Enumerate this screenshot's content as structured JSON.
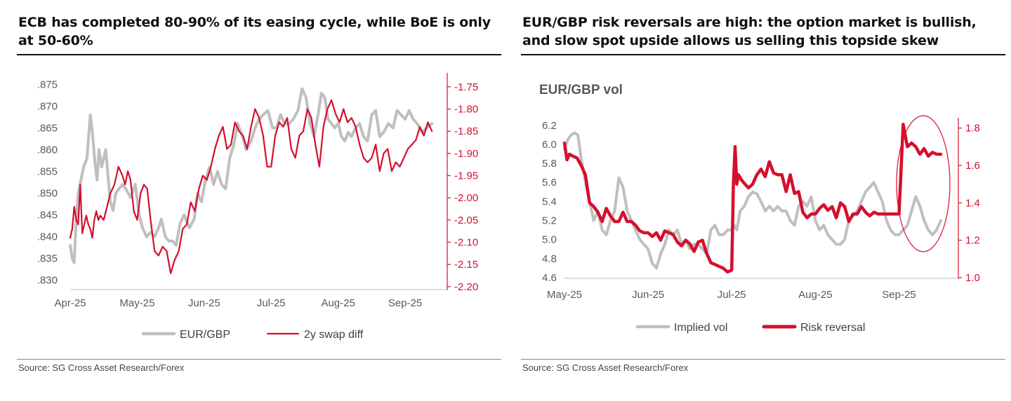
{
  "colors": {
    "grey": "#bfbfbf",
    "red": "#d50f2e",
    "axis_text": "#595959",
    "headline": "#111111"
  },
  "left": {
    "headline": "ECB has completed 80-90% of its easing cycle, while BoE is only at 50-60%",
    "source": "Source: SG Cross Asset Research/Forex"
  },
  "right": {
    "headline": "EUR/GBP risk reversals are high: the option market is bullish, and slow spot upside allows us selling this topside skew",
    "source": "Source: SG Cross Asset Research/Forex"
  },
  "chart_data": [
    {
      "type": "line",
      "title": "",
      "xlabel": "",
      "x_tick_labels": [
        "Apr-25",
        "May-25",
        "Jun-25",
        "Jul-25",
        "Aug-25",
        "Sep-25"
      ],
      "x_range": [
        0,
        5.45
      ],
      "y_left": {
        "range": [
          0.828,
          0.877
        ],
        "ticks": [
          ".830",
          ".835",
          ".840",
          ".845",
          ".850",
          ".855",
          ".860",
          ".865",
          ".870",
          ".875"
        ]
      },
      "y_right": {
        "range": [
          -2.205,
          -1.725
        ],
        "ticks": [
          "-1.75",
          "-1.80",
          "-1.85",
          "-1.90",
          "-1.95",
          "-2.00",
          "-2.05",
          "-2.10",
          "-2.15",
          "-2.20"
        ]
      },
      "legend": [
        "EUR/GBP",
        "2y swap diff"
      ],
      "legend_position": "bottom",
      "series": [
        {
          "name": "EUR/GBP",
          "axis": "left",
          "color": "#bfbfbf",
          "x": [
            0,
            0.03,
            0.06,
            0.09,
            0.12,
            0.16,
            0.2,
            0.25,
            0.3,
            0.33,
            0.37,
            0.4,
            0.43,
            0.47,
            0.5,
            0.53,
            0.57,
            0.6,
            0.64,
            0.68,
            0.73,
            0.78,
            0.83,
            0.9,
            0.97,
            1.03,
            1.08,
            1.14,
            1.2,
            1.26,
            1.32,
            1.36,
            1.42,
            1.47,
            1.53,
            1.58,
            1.64,
            1.7,
            1.78,
            1.85,
            1.9,
            1.96,
            2.02,
            2.08,
            2.14,
            2.2,
            2.26,
            2.32,
            2.38,
            2.44,
            2.5,
            2.57,
            2.63,
            2.7,
            2.76,
            2.82,
            2.88,
            2.95,
            3.02,
            3.08,
            3.14,
            3.2,
            3.27,
            3.33,
            3.4,
            3.46,
            3.52,
            3.58,
            3.64,
            3.7,
            3.75,
            3.8,
            3.85,
            3.9,
            3.95,
            4.0,
            4.05,
            4.1,
            4.15,
            4.2,
            4.26,
            4.32,
            4.38,
            4.44,
            4.5,
            4.56,
            4.62,
            4.68,
            4.75,
            4.82,
            4.88,
            4.94,
            5.0,
            5.06,
            5.12,
            5.18,
            5.25,
            5.32,
            5.4
          ],
          "values": [
            0.838,
            0.835,
            0.834,
            0.844,
            0.85,
            0.853,
            0.856,
            0.858,
            0.868,
            0.864,
            0.857,
            0.853,
            0.86,
            0.856,
            0.858,
            0.86,
            0.853,
            0.848,
            0.846,
            0.85,
            0.851,
            0.852,
            0.851,
            0.849,
            0.852,
            0.845,
            0.842,
            0.84,
            0.841,
            0.84,
            0.842,
            0.844,
            0.84,
            0.839,
            0.839,
            0.838,
            0.843,
            0.845,
            0.842,
            0.844,
            0.85,
            0.848,
            0.853,
            0.856,
            0.852,
            0.855,
            0.852,
            0.851,
            0.858,
            0.861,
            0.866,
            0.863,
            0.86,
            0.862,
            0.865,
            0.867,
            0.868,
            0.869,
            0.865,
            0.865,
            0.868,
            0.866,
            0.866,
            0.867,
            0.869,
            0.874,
            0.872,
            0.866,
            0.863,
            0.868,
            0.873,
            0.872,
            0.867,
            0.866,
            0.865,
            0.866,
            0.863,
            0.862,
            0.864,
            0.863,
            0.865,
            0.866,
            0.863,
            0.862,
            0.868,
            0.869,
            0.863,
            0.864,
            0.866,
            0.865,
            0.869,
            0.868,
            0.867,
            0.869,
            0.867,
            0.866,
            0.864,
            0.865,
            0.866
          ]
        },
        {
          "name": "2y swap diff",
          "axis": "right",
          "color": "#d50f2e",
          "x": [
            0,
            0.03,
            0.06,
            0.09,
            0.12,
            0.15,
            0.18,
            0.21,
            0.24,
            0.27,
            0.3,
            0.33,
            0.36,
            0.39,
            0.42,
            0.45,
            0.5,
            0.55,
            0.6,
            0.66,
            0.72,
            0.78,
            0.82,
            0.86,
            0.9,
            0.95,
            1.0,
            1.05,
            1.1,
            1.15,
            1.2,
            1.26,
            1.32,
            1.38,
            1.44,
            1.5,
            1.56,
            1.62,
            1.68,
            1.74,
            1.8,
            1.86,
            1.92,
            1.98,
            2.04,
            2.1,
            2.16,
            2.22,
            2.28,
            2.34,
            2.4,
            2.46,
            2.52,
            2.58,
            2.64,
            2.7,
            2.76,
            2.82,
            2.88,
            2.94,
            3.0,
            3.06,
            3.12,
            3.18,
            3.24,
            3.3,
            3.36,
            3.42,
            3.48,
            3.54,
            3.6,
            3.66,
            3.72,
            3.78,
            3.84,
            3.9,
            3.96,
            4.02,
            4.08,
            4.14,
            4.2,
            4.26,
            4.32,
            4.38,
            4.44,
            4.5,
            4.56,
            4.62,
            4.68,
            4.74,
            4.8,
            4.86,
            4.92,
            4.98,
            5.04,
            5.1,
            5.16,
            5.22,
            5.28,
            5.34,
            5.4
          ],
          "values": [
            -2.09,
            -2.07,
            -2.02,
            -2.05,
            -2.06,
            -1.97,
            -2.08,
            -2.06,
            -2.04,
            -2.06,
            -2.07,
            -2.09,
            -2.05,
            -2.03,
            -2.05,
            -2.04,
            -2.05,
            -2.02,
            -1.99,
            -1.97,
            -1.93,
            -1.95,
            -1.97,
            -1.94,
            -1.96,
            -2.03,
            -2.05,
            -1.99,
            -1.97,
            -1.98,
            -2.05,
            -2.12,
            -2.13,
            -2.11,
            -2.12,
            -2.17,
            -2.14,
            -2.12,
            -2.07,
            -2.06,
            -2.01,
            -2.03,
            -1.98,
            -1.95,
            -1.96,
            -1.93,
            -1.89,
            -1.86,
            -1.84,
            -1.89,
            -1.88,
            -1.83,
            -1.85,
            -1.86,
            -1.89,
            -1.84,
            -1.8,
            -1.82,
            -1.86,
            -1.93,
            -1.93,
            -1.86,
            -1.83,
            -1.84,
            -1.82,
            -1.89,
            -1.91,
            -1.86,
            -1.85,
            -1.8,
            -1.82,
            -1.88,
            -1.93,
            -1.84,
            -1.8,
            -1.78,
            -1.81,
            -1.83,
            -1.8,
            -1.83,
            -1.82,
            -1.84,
            -1.88,
            -1.91,
            -1.92,
            -1.91,
            -1.88,
            -1.94,
            -1.9,
            -1.89,
            -1.94,
            -1.92,
            -1.93,
            -1.91,
            -1.89,
            -1.88,
            -1.87,
            -1.84,
            -1.86,
            -1.83,
            -1.85
          ]
        }
      ]
    },
    {
      "type": "line",
      "title": "EUR/GBP vol",
      "xlabel": "",
      "x_tick_labels": [
        "May-25",
        "Jun-25",
        "Jul-25",
        "Aug-25",
        "Sep-25"
      ],
      "x_range": [
        0,
        4.55
      ],
      "y_left": {
        "range": [
          4.6,
          6.25
        ],
        "ticks": [
          "4.6",
          "4.8",
          "5.0",
          "5.2",
          "5.4",
          "5.6",
          "5.8",
          "6.0",
          "6.2"
        ]
      },
      "y_right": {
        "range": [
          1.0,
          1.84
        ],
        "ticks": [
          "1.0",
          "1.2",
          "1.4",
          "1.6",
          "1.8"
        ]
      },
      "legend": [
        "Implied vol",
        "Risk reversal"
      ],
      "legend_position": "bottom",
      "annotation": "red ellipse highlighting September risk-reversal spike",
      "series": [
        {
          "name": "Implied vol",
          "axis": "left",
          "color": "#bfbfbf",
          "x": [
            0,
            0.04,
            0.08,
            0.12,
            0.16,
            0.2,
            0.25,
            0.3,
            0.35,
            0.4,
            0.45,
            0.5,
            0.55,
            0.6,
            0.65,
            0.7,
            0.75,
            0.8,
            0.85,
            0.9,
            0.95,
            1.0,
            1.05,
            1.1,
            1.15,
            1.2,
            1.25,
            1.3,
            1.35,
            1.4,
            1.45,
            1.5,
            1.55,
            1.6,
            1.65,
            1.7,
            1.75,
            1.8,
            1.85,
            1.9,
            1.95,
            2.0,
            2.03,
            2.06,
            2.1,
            2.15,
            2.2,
            2.25,
            2.3,
            2.35,
            2.4,
            2.45,
            2.5,
            2.55,
            2.6,
            2.65,
            2.7,
            2.75,
            2.8,
            2.85,
            2.9,
            2.95,
            3.0,
            3.05,
            3.1,
            3.15,
            3.2,
            3.25,
            3.3,
            3.35,
            3.4,
            3.45,
            3.5,
            3.55,
            3.6,
            3.65,
            3.7,
            3.75,
            3.8,
            3.85,
            3.9,
            3.95,
            4.0,
            4.05,
            4.1,
            4.15,
            4.2,
            4.25,
            4.3,
            4.35,
            4.4,
            4.45,
            4.5
          ],
          "values": [
            5.95,
            6.05,
            6.1,
            6.12,
            6.1,
            5.85,
            5.6,
            5.4,
            5.2,
            5.3,
            5.1,
            5.05,
            5.2,
            5.3,
            5.65,
            5.55,
            5.3,
            5.2,
            5.1,
            5.0,
            4.95,
            4.9,
            4.75,
            4.7,
            4.85,
            4.95,
            5.1,
            5.05,
            5.1,
            4.95,
            5.0,
            4.9,
            4.95,
            4.95,
            4.9,
            4.85,
            5.1,
            5.15,
            5.05,
            5.05,
            5.1,
            5.1,
            5.15,
            5.1,
            5.3,
            5.35,
            5.45,
            5.5,
            5.48,
            5.4,
            5.3,
            5.35,
            5.3,
            5.35,
            5.3,
            5.3,
            5.2,
            5.15,
            5.35,
            5.4,
            5.35,
            5.45,
            5.2,
            5.1,
            5.15,
            5.05,
            5.0,
            4.95,
            4.95,
            5.0,
            5.2,
            5.25,
            5.3,
            5.4,
            5.5,
            5.55,
            5.6,
            5.5,
            5.4,
            5.2,
            5.1,
            5.05,
            5.05,
            5.1,
            5.15,
            5.3,
            5.45,
            5.35,
            5.2,
            5.1,
            5.05,
            5.1,
            5.2
          ]
        },
        {
          "name": "Risk reversal",
          "axis": "right",
          "color": "#d50f2e",
          "x": [
            0,
            0.03,
            0.06,
            0.1,
            0.15,
            0.2,
            0.25,
            0.3,
            0.35,
            0.4,
            0.45,
            0.5,
            0.55,
            0.6,
            0.65,
            0.7,
            0.75,
            0.8,
            0.85,
            0.9,
            0.95,
            1.0,
            1.05,
            1.1,
            1.15,
            1.2,
            1.25,
            1.3,
            1.35,
            1.4,
            1.45,
            1.5,
            1.55,
            1.6,
            1.65,
            1.7,
            1.75,
            1.8,
            1.85,
            1.9,
            1.95,
            2.0,
            2.02,
            2.04,
            2.06,
            2.08,
            2.12,
            2.16,
            2.2,
            2.25,
            2.3,
            2.35,
            2.4,
            2.45,
            2.5,
            2.55,
            2.6,
            2.65,
            2.7,
            2.75,
            2.8,
            2.85,
            2.9,
            2.95,
            3.0,
            3.05,
            3.1,
            3.15,
            3.2,
            3.25,
            3.3,
            3.35,
            3.4,
            3.45,
            3.5,
            3.55,
            3.6,
            3.65,
            3.7,
            3.75,
            3.8,
            3.85,
            3.9,
            3.95,
            4.0,
            4.05,
            4.1,
            4.15,
            4.2,
            4.25,
            4.3,
            4.35,
            4.4,
            4.45,
            4.5
          ],
          "values": [
            1.72,
            1.63,
            1.66,
            1.65,
            1.64,
            1.6,
            1.55,
            1.4,
            1.38,
            1.35,
            1.3,
            1.37,
            1.33,
            1.3,
            1.3,
            1.35,
            1.3,
            1.3,
            1.28,
            1.25,
            1.24,
            1.24,
            1.22,
            1.24,
            1.2,
            1.25,
            1.24,
            1.23,
            1.19,
            1.17,
            1.2,
            1.18,
            1.14,
            1.19,
            1.2,
            1.13,
            1.08,
            1.07,
            1.06,
            1.05,
            1.03,
            1.04,
            1.5,
            1.7,
            1.5,
            1.55,
            1.52,
            1.5,
            1.48,
            1.5,
            1.55,
            1.58,
            1.54,
            1.62,
            1.56,
            1.55,
            1.55,
            1.46,
            1.55,
            1.45,
            1.46,
            1.35,
            1.32,
            1.34,
            1.34,
            1.37,
            1.39,
            1.36,
            1.38,
            1.32,
            1.4,
            1.38,
            1.3,
            1.34,
            1.34,
            1.38,
            1.35,
            1.33,
            1.35,
            1.34,
            1.34,
            1.34,
            1.34,
            1.34,
            1.34,
            1.82,
            1.7,
            1.72,
            1.7,
            1.66,
            1.69,
            1.65,
            1.67,
            1.66,
            1.66
          ]
        }
      ]
    }
  ]
}
